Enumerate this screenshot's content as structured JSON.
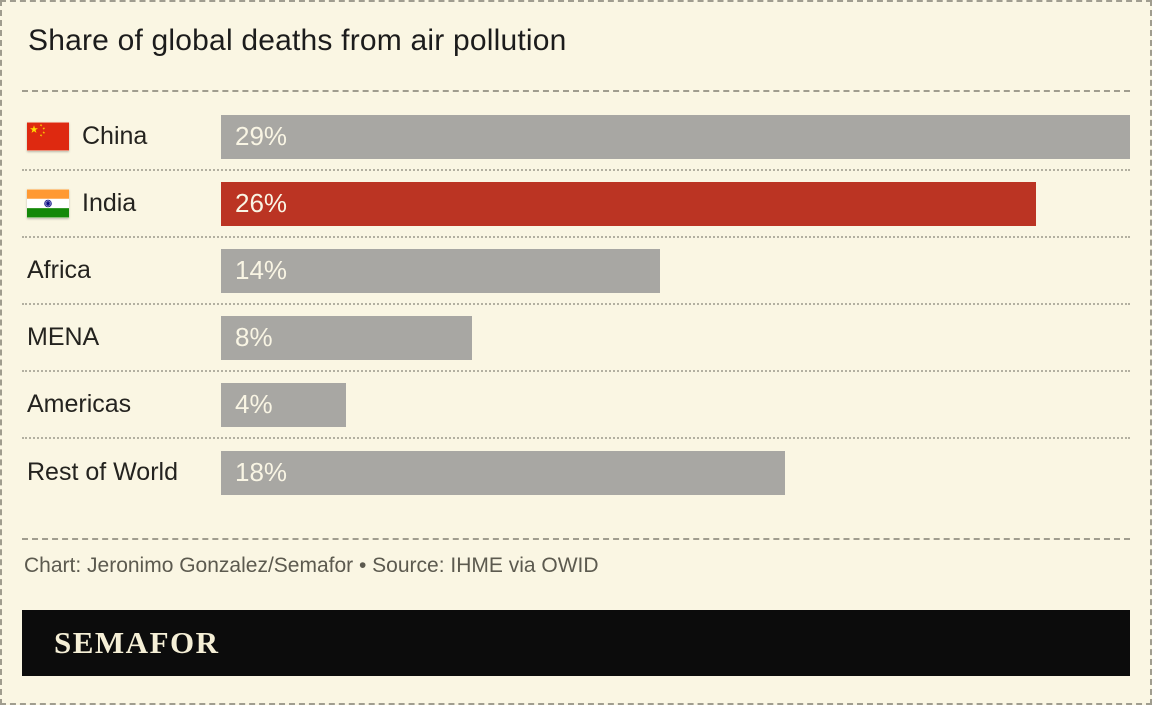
{
  "page": {
    "title": "Share of global deaths from air pollution",
    "credit": "Chart: Jeronimo Gonzalez/Semafor • Source: IHME via OWID",
    "brand": "SEMAFOR"
  },
  "chart_data": {
    "type": "bar",
    "orientation": "horizontal",
    "title": "Share of global deaths from air pollution",
    "categories": [
      "China",
      "India",
      "Africa",
      "MENA",
      "Americas",
      "Rest of World"
    ],
    "values": [
      29,
      26,
      14,
      8,
      4,
      18
    ],
    "unit": "%",
    "xlim": [
      0,
      29
    ],
    "grid": false,
    "legend": false,
    "value_label_position": "inside-left",
    "highlighted_category": "India",
    "rows": [
      {
        "label": "China",
        "value": 29,
        "display": "29%",
        "flag_icon": "china-flag-icon",
        "highlight": false
      },
      {
        "label": "India",
        "value": 26,
        "display": "26%",
        "flag_icon": "india-flag-icon",
        "highlight": true
      },
      {
        "label": "Africa",
        "value": 14,
        "display": "14%",
        "flag_icon": null,
        "highlight": false
      },
      {
        "label": "MENA",
        "value": 8,
        "display": "8%",
        "flag_icon": null,
        "highlight": false
      },
      {
        "label": "Americas",
        "value": 4,
        "display": "4%",
        "flag_icon": null,
        "highlight": false
      },
      {
        "label": "Rest of World",
        "value": 18,
        "display": "18%",
        "flag_icon": null,
        "highlight": false
      }
    ]
  },
  "colors": {
    "background": "#faf6e3",
    "bar_gray": "#a8a7a3",
    "bar_red": "#bb3423",
    "title_text": "#1c1c1c",
    "label_text": "#24231f",
    "value_text": "#f9f5e4",
    "credit_text": "#5c5a4f",
    "divider": "#a09d8f",
    "logo_bg": "#0c0c0c",
    "logo_text": "#f5efd6"
  }
}
